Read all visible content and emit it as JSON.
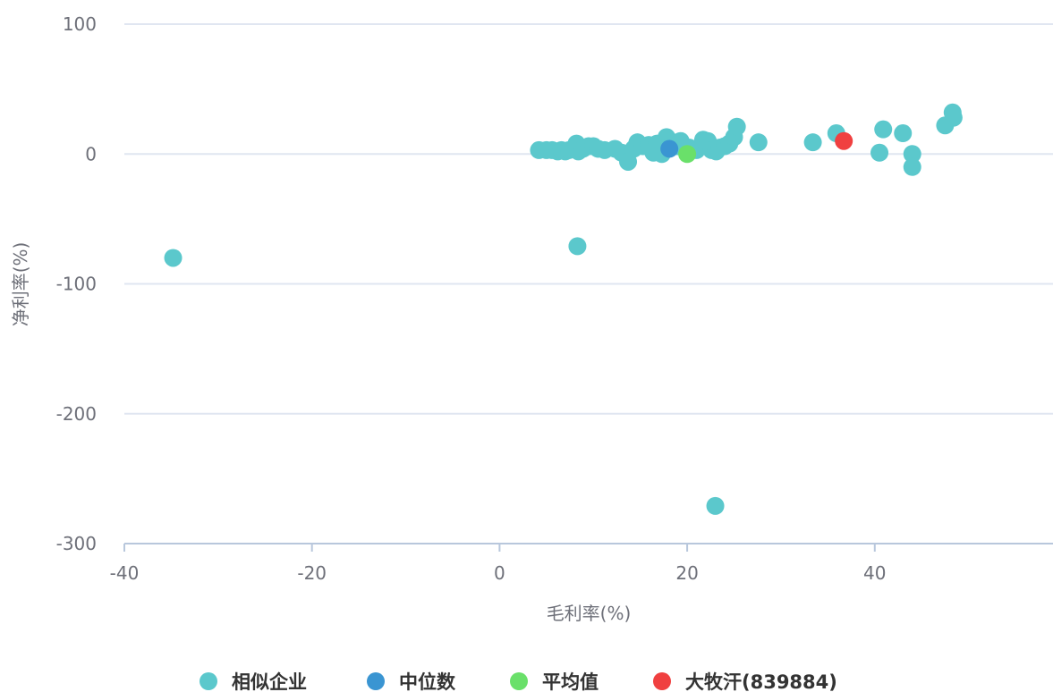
{
  "chart_data": {
    "type": "scatter",
    "xlabel": "毛利率(%)",
    "ylabel": "净利率(%)",
    "xlim": [
      -40,
      59
    ],
    "ylim": [
      -300,
      100
    ],
    "xticks": [
      -40,
      -20,
      0,
      20,
      40
    ],
    "yticks": [
      100,
      0,
      -100,
      -200,
      -300
    ],
    "grid": "horizontal",
    "legend_position": "bottom-center",
    "series": [
      {
        "name": "相似企业",
        "color": "#5bc8cc",
        "points": [
          [
            -34.8,
            -80
          ],
          [
            8.3,
            -71
          ],
          [
            23.0,
            -271
          ],
          [
            4.2,
            3
          ],
          [
            5.0,
            3
          ],
          [
            5.6,
            3
          ],
          [
            6.2,
            2
          ],
          [
            6.6,
            3
          ],
          [
            7.0,
            2
          ],
          [
            7.4,
            3
          ],
          [
            8.2,
            8
          ],
          [
            8.4,
            2
          ],
          [
            8.9,
            4
          ],
          [
            9.5,
            6
          ],
          [
            10.0,
            6
          ],
          [
            10.5,
            4
          ],
          [
            11.2,
            3
          ],
          [
            12.3,
            4
          ],
          [
            13.0,
            1
          ],
          [
            13.7,
            -6
          ],
          [
            14.3,
            4
          ],
          [
            14.7,
            9
          ],
          [
            15.3,
            6
          ],
          [
            15.9,
            7
          ],
          [
            16.4,
            1
          ],
          [
            16.8,
            8
          ],
          [
            17.3,
            0
          ],
          [
            17.8,
            13
          ],
          [
            18.5,
            9
          ],
          [
            19.0,
            6
          ],
          [
            19.3,
            10
          ],
          [
            20.2,
            5
          ],
          [
            21.0,
            3
          ],
          [
            21.7,
            11
          ],
          [
            22.2,
            10
          ],
          [
            22.6,
            3
          ],
          [
            23.1,
            2
          ],
          [
            23.5,
            5
          ],
          [
            24.0,
            6
          ],
          [
            24.5,
            8
          ],
          [
            25.0,
            13
          ],
          [
            25.3,
            21
          ],
          [
            27.6,
            9
          ],
          [
            33.4,
            9
          ],
          [
            35.9,
            16
          ],
          [
            40.5,
            1
          ],
          [
            40.9,
            19
          ],
          [
            43.0,
            16
          ],
          [
            44.0,
            0
          ],
          [
            44.0,
            -10
          ],
          [
            47.5,
            22
          ],
          [
            48.3,
            32
          ],
          [
            48.4,
            28
          ]
        ]
      },
      {
        "name": "中位数",
        "color": "#3a95d2",
        "points": [
          [
            18.1,
            4
          ]
        ]
      },
      {
        "name": "平均值",
        "color": "#6ae06a",
        "points": [
          [
            20.0,
            0
          ]
        ]
      },
      {
        "name": "大牧汗(839884)",
        "color": "#f04040",
        "points": [
          [
            36.7,
            10
          ]
        ]
      }
    ]
  }
}
